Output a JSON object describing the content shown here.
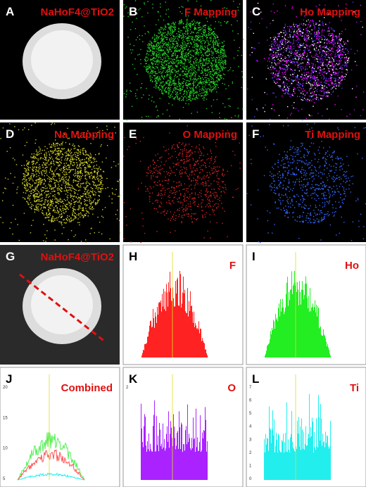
{
  "panels": [
    {
      "label": "A",
      "title": "NaHoF4@TiO2"
    },
    {
      "label": "B",
      "title": "F Mapping"
    },
    {
      "label": "C",
      "title": "Ho Mapping"
    },
    {
      "label": "D",
      "title": "Na Mapping"
    },
    {
      "label": "E",
      "title": "O Mapping"
    },
    {
      "label": "F",
      "title": "Ti Mapping"
    },
    {
      "label": "G",
      "title": "NaHoF4@TiO2"
    },
    {
      "label": "H",
      "title": "F"
    },
    {
      "label": "I",
      "title": "Ho"
    },
    {
      "label": "J",
      "title": "Combined",
      "ticks": [
        "20",
        "15",
        "10",
        "5"
      ]
    },
    {
      "label": "K",
      "title": "O",
      "ticks": [
        "2"
      ]
    },
    {
      "label": "L",
      "title": "Ti",
      "ticks": [
        "7",
        "6",
        "5",
        "4",
        "3",
        "2",
        "1",
        "0"
      ]
    }
  ]
}
